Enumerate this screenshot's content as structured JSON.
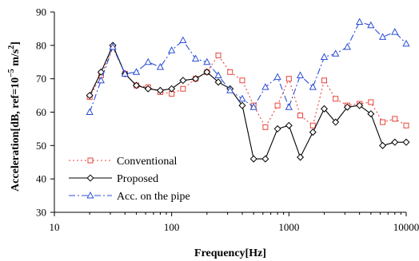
{
  "chart_data": {
    "type": "line",
    "xscale": "log",
    "xlim": [
      10,
      10000
    ],
    "ylim": [
      30,
      90
    ],
    "xticks": [
      10,
      100,
      1000,
      10000
    ],
    "xtick_labels": [
      "10",
      "100",
      "1000",
      "10000"
    ],
    "yticks": [
      30,
      40,
      50,
      60,
      70,
      80,
      90
    ],
    "ytick_labels": [
      "30",
      "40",
      "50",
      "60",
      "70",
      "80",
      "90"
    ],
    "xlabel": "Frequency[Hz]",
    "ylabel_parts": {
      "main": "Acceleration[dB, ref=10",
      "exp1": "−5",
      "mid": " m/s",
      "exp2": "2",
      "end": "]"
    },
    "grid": false,
    "legend_position": "bottom-left",
    "series": [
      {
        "name": "Conventional",
        "color": "#e8443a",
        "dash": "2,3",
        "marker": "square",
        "x": [
          20,
          25,
          31.5,
          40,
          50,
          63,
          80,
          100,
          125,
          160,
          200,
          250,
          315,
          400,
          500,
          630,
          800,
          1000,
          1250,
          1600,
          2000,
          2500,
          3150,
          4000,
          5000,
          6300,
          8000,
          10000
        ],
        "values": [
          64.5,
          71,
          79.5,
          71.5,
          68,
          67.5,
          66,
          65.5,
          67,
          70,
          72,
          77,
          72,
          69.5,
          62,
          55.5,
          62,
          70,
          59,
          56,
          69.5,
          64,
          62,
          62.5,
          63,
          57,
          58,
          56
        ]
      },
      {
        "name": "Proposed",
        "color": "#000000",
        "dash": "",
        "marker": "diamond",
        "x": [
          20,
          25,
          31.5,
          40,
          50,
          63,
          80,
          100,
          125,
          160,
          200,
          250,
          315,
          400,
          500,
          630,
          800,
          1000,
          1250,
          1600,
          2000,
          2500,
          3150,
          4000,
          5000,
          6300,
          8000,
          10000
        ],
        "values": [
          65,
          72,
          80,
          71.5,
          68,
          67,
          66.5,
          67,
          69.5,
          70,
          72,
          69,
          67,
          62,
          46,
          46,
          55,
          56,
          46.5,
          54,
          61,
          57,
          61.5,
          62,
          59.5,
          50,
          51,
          51
        ]
      },
      {
        "name": "Acc. on the pipe",
        "color": "#2c4fd6",
        "dash": "8,3,2,3",
        "marker": "triangle",
        "x": [
          20,
          25,
          31.5,
          40,
          50,
          63,
          80,
          100,
          125,
          160,
          200,
          250,
          315,
          400,
          500,
          630,
          800,
          1000,
          1250,
          1600,
          2000,
          2500,
          3150,
          4000,
          5000,
          6300,
          8000,
          10000
        ],
        "values": [
          60,
          69.5,
          79.5,
          71.5,
          72,
          75,
          73.5,
          78.5,
          81.5,
          76,
          75,
          71,
          66.5,
          64,
          61.5,
          67.5,
          70.5,
          61.5,
          71,
          67.5,
          76.5,
          77.5,
          79.5,
          87,
          86,
          82.5,
          84,
          80.5
        ]
      }
    ]
  }
}
